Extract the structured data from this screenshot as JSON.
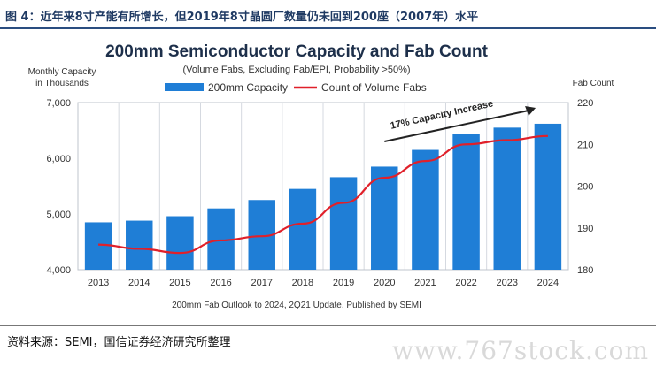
{
  "figure_title": "图 4：近年来8寸产能有所增长，但2019年8寸晶圆厂数量仍未回到200座（2007年）水平",
  "source_text": "资料来源：SEMI，国信证券经济研究所整理",
  "watermark": "www.767stock.com",
  "chart_data": {
    "type": "bar",
    "title": "200mm Semiconductor Capacity and Fab Count",
    "subtitle": "(Volume Fabs, Excluding Fab/EPI, Probability >50%)",
    "ylabel_left_line1": "Monthly Capacity",
    "ylabel_left_line2": "in Thousands",
    "ylabel_right": "Fab Count",
    "footnote": "200mm Fab Outlook to 2024, 2Q21 Update, Published by SEMI",
    "annotation": "17% Capacity Increase",
    "categories": [
      "2013",
      "2014",
      "2015",
      "2016",
      "2017",
      "2018",
      "2019",
      "2020",
      "2021",
      "2022",
      "2023",
      "2024"
    ],
    "series": [
      {
        "name": "200mm Capacity",
        "kind": "bar",
        "axis": "left",
        "color": "#1f7ed6",
        "values": [
          4850,
          4880,
          4960,
          5100,
          5250,
          5450,
          5660,
          5850,
          6150,
          6430,
          6550,
          6620
        ]
      },
      {
        "name": "Count of Volume Fabs",
        "kind": "line",
        "axis": "right",
        "color": "#e0202a",
        "values": [
          186,
          185,
          184,
          187,
          188,
          191,
          196,
          202,
          206,
          210,
          211,
          212
        ]
      }
    ],
    "ylim_left": [
      4000,
      7000
    ],
    "yticks_left": [
      "4,000",
      "5,000",
      "6,000",
      "7,000"
    ],
    "ylim_right": [
      180,
      220
    ],
    "yticks_right": [
      "180",
      "190",
      "200",
      "210",
      "220"
    ],
    "grid": "vertical",
    "legend": "top-center"
  }
}
